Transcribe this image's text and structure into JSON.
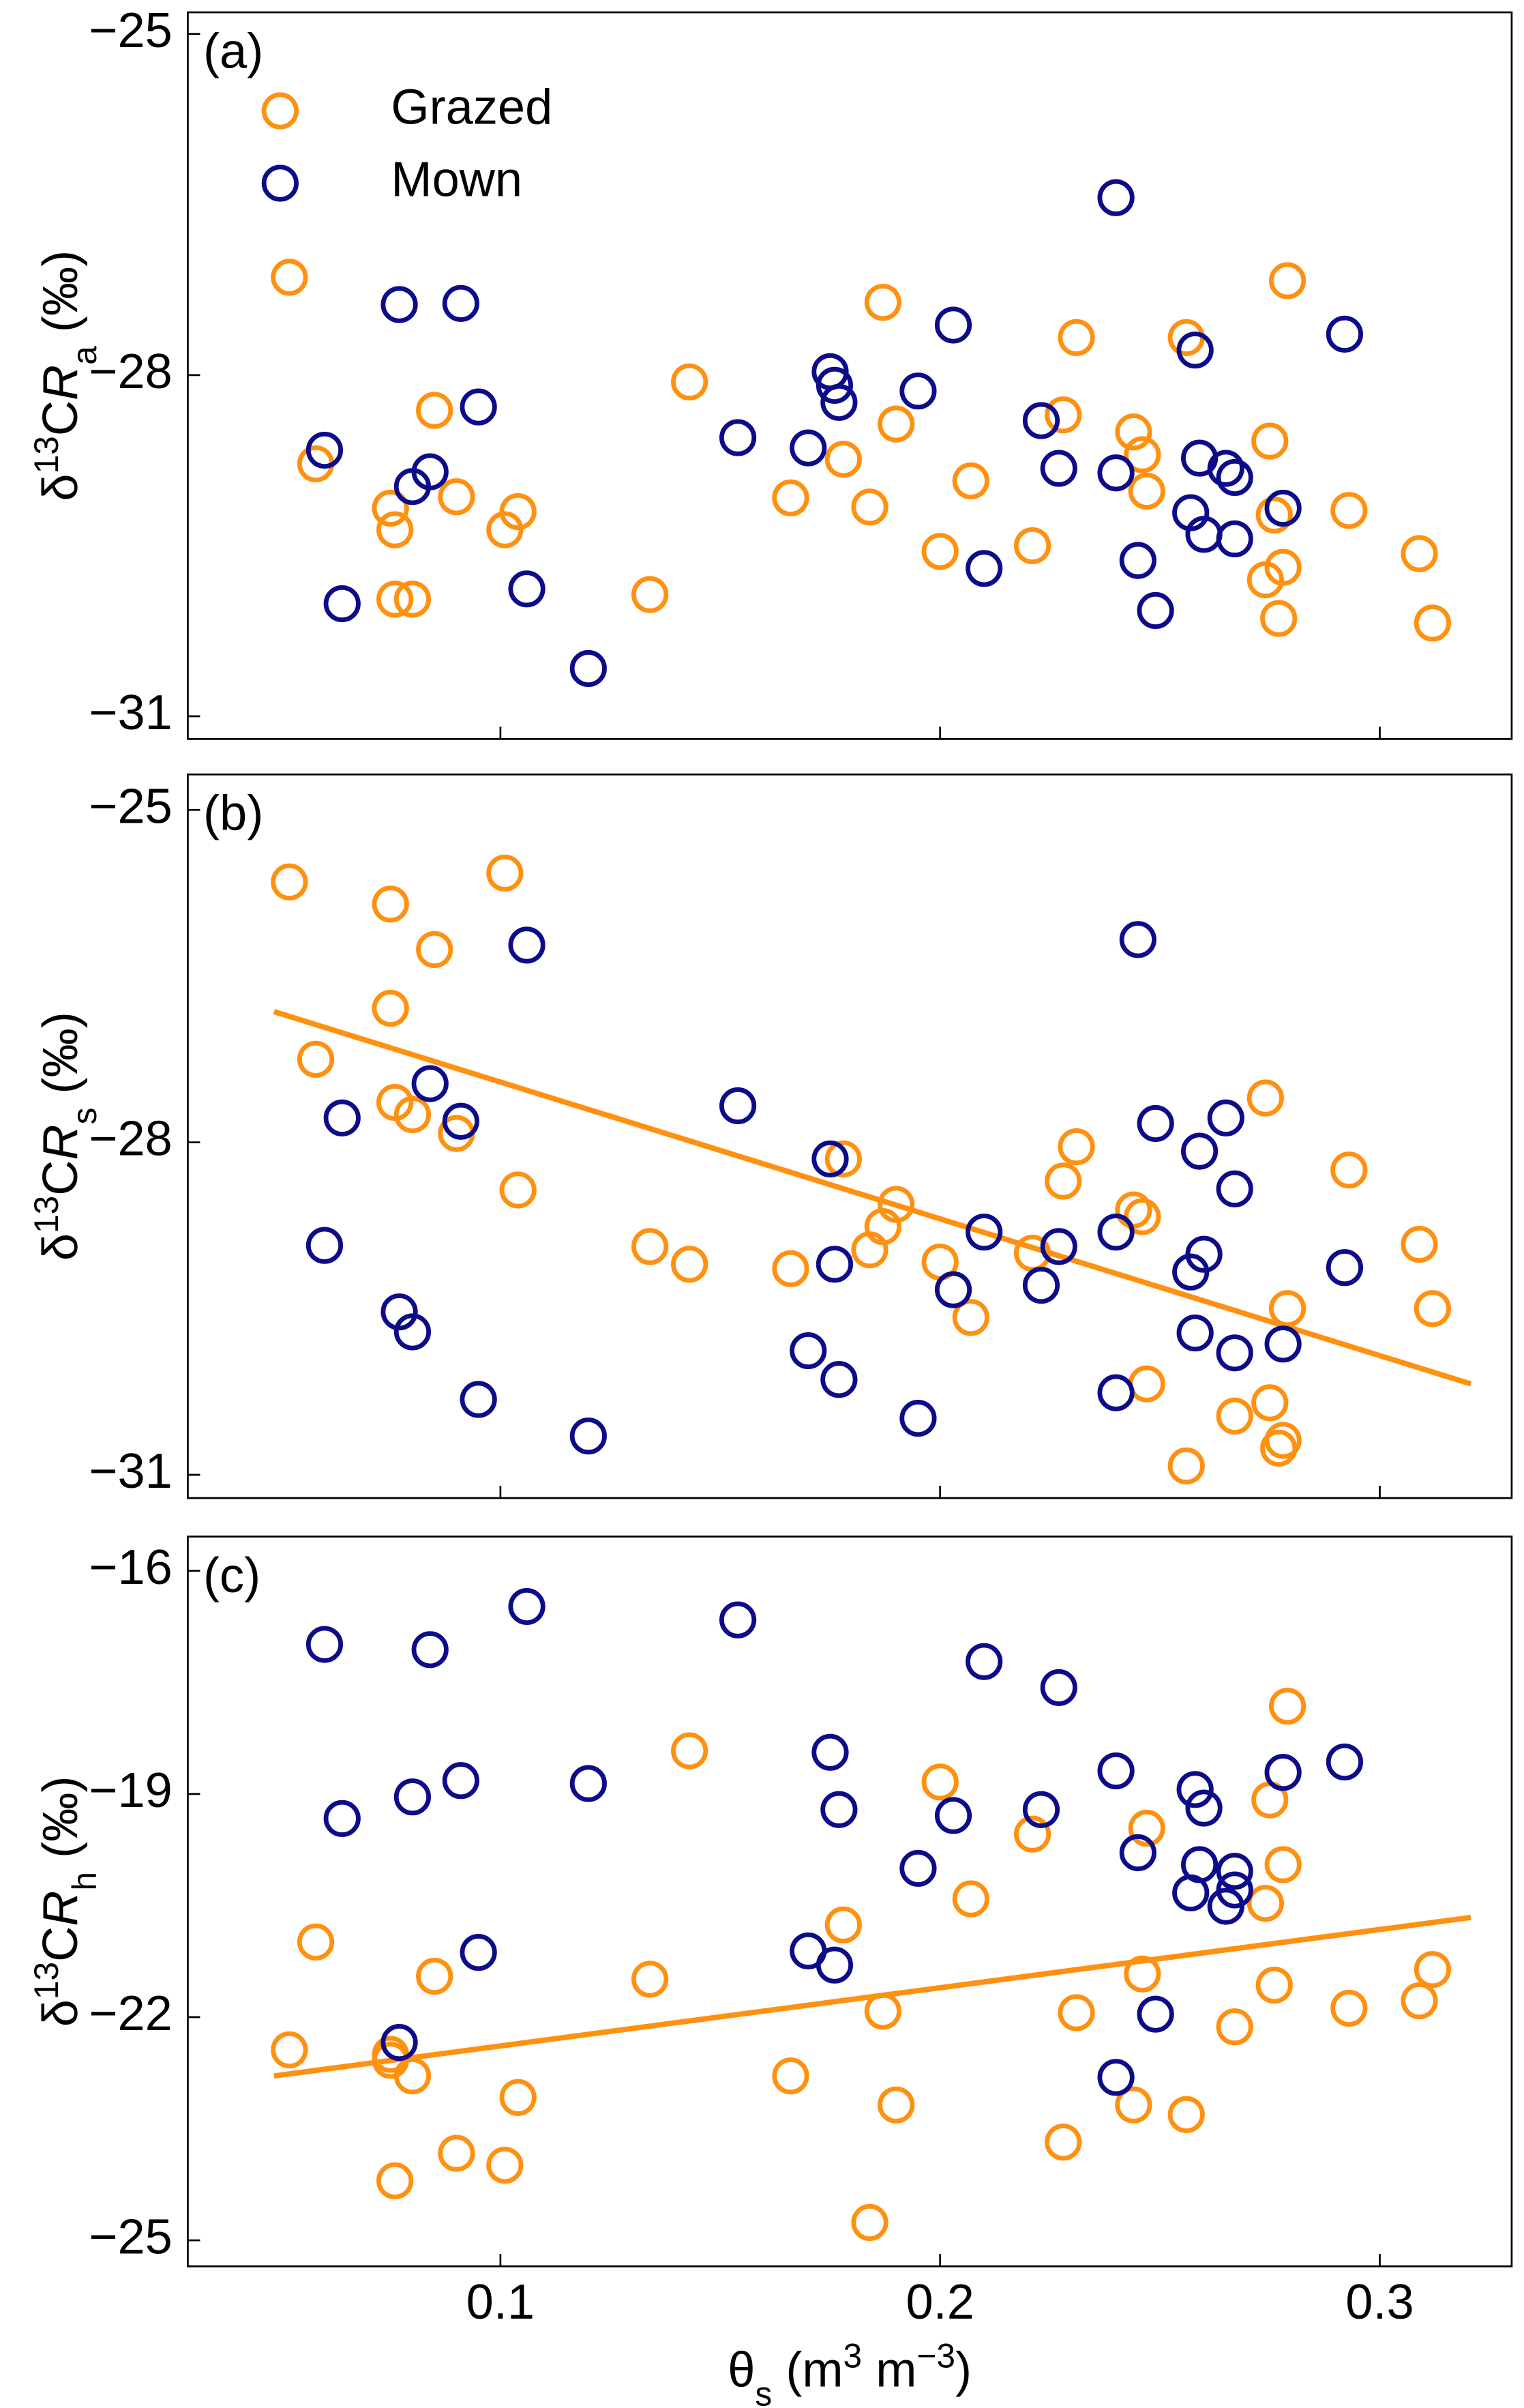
{
  "chart_data": [
    {
      "type": "scatter",
      "panel_label": "(a)",
      "ylabel": [
        "δ",
        "13",
        "C",
        "R",
        "a",
        " (‰)"
      ],
      "xlim": [
        0.0289,
        0.33
      ],
      "ylim": [
        -31.2,
        -24.81
      ],
      "xticks": [
        0.1,
        0.2,
        0.3
      ],
      "show_xtick_labels": false,
      "yticks": [
        {
          "value": -25,
          "label": "−25"
        },
        {
          "value": -28,
          "label": "−28"
        },
        {
          "value": -31,
          "label": "−31"
        }
      ],
      "legend": "upper left",
      "series": [
        {
          "name": "Grazed",
          "color": "#ff9010",
          "x": [
            0.052,
            0.058,
            0.075,
            0.076,
            0.08,
            0.085,
            0.09,
            0.101,
            0.104,
            0.134,
            0.143,
            0.166,
            0.178,
            0.184,
            0.187,
            0.19,
            0.2,
            0.207,
            0.221,
            0.228,
            0.231,
            0.244,
            0.246,
            0.247,
            0.256,
            0.274,
            0.275,
            0.276,
            0.277,
            0.278,
            0.279,
            0.293,
            0.309,
            0.312,
            0.076
          ],
          "values": [
            -27.14,
            -28.78,
            -29.17,
            -29.97,
            -29.97,
            -28.31,
            -29.07,
            -29.36,
            -29.2,
            -29.93,
            -28.06,
            -29.08,
            -28.74,
            -29.16,
            -27.36,
            -28.43,
            -29.55,
            -28.93,
            -29.5,
            -28.35,
            -27.67,
            -28.5,
            -28.7,
            -29.02,
            -27.67,
            -29.8,
            -28.58,
            -29.23,
            -30.14,
            -29.69,
            -27.17,
            -29.19,
            -29.57,
            -30.18,
            -29.36
          ]
        },
        {
          "name": "Mown",
          "color": "#0c0c8a",
          "x": [
            0.06,
            0.064,
            0.077,
            0.08,
            0.084,
            0.091,
            0.095,
            0.106,
            0.12,
            0.154,
            0.17,
            0.175,
            0.176,
            0.177,
            0.195,
            0.203,
            0.21,
            0.223,
            0.227,
            0.24,
            0.24,
            0.245,
            0.249,
            0.258,
            0.259,
            0.257,
            0.26,
            0.265,
            0.267,
            0.267,
            0.278,
            0.292
          ],
          "values": [
            -28.66,
            -30.01,
            -27.38,
            -28.98,
            -28.85,
            -27.37,
            -28.28,
            -29.88,
            -30.58,
            -28.55,
            -28.64,
            -27.97,
            -28.09,
            -28.24,
            -28.14,
            -27.56,
            -29.7,
            -28.4,
            -28.82,
            -26.44,
            -28.86,
            -29.63,
            -30.07,
            -27.78,
            -28.73,
            -29.21,
            -29.4,
            -28.82,
            -28.9,
            -29.44,
            -29.17,
            -27.64
          ]
        }
      ]
    },
    {
      "type": "scatter",
      "panel_label": "(b)",
      "ylabel": [
        "δ",
        "13",
        "C",
        "R",
        "s",
        " (‰)"
      ],
      "xlim": [
        0.0289,
        0.33
      ],
      "ylim": [
        -31.21,
        -24.68
      ],
      "xticks": [
        0.1,
        0.2,
        0.3
      ],
      "show_xtick_labels": false,
      "yticks": [
        {
          "value": -25,
          "label": "−25"
        },
        {
          "value": -28,
          "label": "−28"
        },
        {
          "value": -31,
          "label": "−31"
        }
      ],
      "series": [
        {
          "color": "#ff9010",
          "x": [
            0.052,
            0.058,
            0.075,
            0.075,
            0.076,
            0.08,
            0.085,
            0.09,
            0.101,
            0.104,
            0.134,
            0.143,
            0.166,
            0.178,
            0.184,
            0.187,
            0.19,
            0.2,
            0.207,
            0.221,
            0.228,
            0.231,
            0.244,
            0.246,
            0.247,
            0.256,
            0.267,
            0.274,
            0.275,
            0.277,
            0.278,
            0.279,
            0.293,
            0.309,
            0.312
          ],
          "values": [
            -25.65,
            -27.25,
            -25.85,
            -26.79,
            -27.64,
            -27.75,
            -26.26,
            -27.92,
            -25.57,
            -28.43,
            -28.94,
            -29.1,
            -29.14,
            -28.15,
            -28.97,
            -28.76,
            -28.56,
            -29.08,
            -29.58,
            -29.0,
            -28.35,
            -28.04,
            -28.61,
            -28.67,
            -30.18,
            -30.92,
            -30.47,
            -27.6,
            -30.35,
            -30.76,
            -30.69,
            -29.5,
            -28.25,
            -28.92,
            -29.5
          ]
        },
        {
          "color": "#0c0c8a",
          "x": [
            0.06,
            0.064,
            0.077,
            0.08,
            0.084,
            0.091,
            0.095,
            0.106,
            0.12,
            0.154,
            0.17,
            0.175,
            0.176,
            0.177,
            0.195,
            0.203,
            0.21,
            0.223,
            0.227,
            0.24,
            0.24,
            0.245,
            0.249,
            0.258,
            0.259,
            0.257,
            0.26,
            0.265,
            0.267,
            0.267,
            0.278,
            0.292
          ],
          "values": [
            -28.93,
            -27.78,
            -29.53,
            -29.71,
            -27.47,
            -27.81,
            -30.32,
            -26.22,
            -30.65,
            -27.67,
            -29.88,
            -28.15,
            -29.1,
            -30.14,
            -30.49,
            -29.33,
            -28.81,
            -29.29,
            -28.94,
            -28.81,
            -30.26,
            -26.17,
            -27.83,
            -29.72,
            -28.08,
            -29.17,
            -29.01,
            -27.78,
            -29.9,
            -28.42,
            -29.82,
            -29.13
          ]
        }
      ],
      "trend": {
        "color": "#ff9010",
        "x": [
          0.0485,
          0.3207
        ],
        "values": [
          -26.82,
          -30.18
        ]
      }
    },
    {
      "type": "scatter",
      "panel_label": "(c)",
      "ylabel": [
        "δ",
        "13",
        "C",
        "R",
        "h",
        " (‰)"
      ],
      "xlabel": [
        "θ",
        "s",
        " (m",
        "3",
        " m",
        "−3",
        ")"
      ],
      "xlim": [
        0.0289,
        0.33
      ],
      "ylim": [
        -25.35,
        -15.54
      ],
      "xticks": [
        0.1,
        0.2,
        0.3
      ],
      "show_xtick_labels": true,
      "yticks": [
        {
          "value": -16,
          "label": "−16"
        },
        {
          "value": -19,
          "label": "−19"
        },
        {
          "value": -22,
          "label": "−22"
        },
        {
          "value": -25,
          "label": "−25"
        }
      ],
      "series": [
        {
          "color": "#ff9010",
          "x": [
            0.052,
            0.058,
            0.075,
            0.075,
            0.076,
            0.08,
            0.085,
            0.09,
            0.101,
            0.104,
            0.134,
            0.143,
            0.166,
            0.178,
            0.184,
            0.187,
            0.19,
            0.2,
            0.207,
            0.221,
            0.228,
            0.231,
            0.244,
            0.246,
            0.247,
            0.256,
            0.267,
            0.274,
            0.275,
            0.276,
            0.278,
            0.279,
            0.293,
            0.309,
            0.312
          ],
          "values": [
            -22.44,
            -20.99,
            -22.58,
            -22.5,
            -24.2,
            -22.79,
            -21.45,
            -23.83,
            -23.99,
            -23.08,
            -21.49,
            -18.42,
            -22.79,
            -20.76,
            -24.76,
            -21.92,
            -23.18,
            -18.84,
            -20.41,
            -19.54,
            -23.68,
            -21.94,
            -23.18,
            -21.42,
            -19.46,
            -23.31,
            -22.13,
            -20.47,
            -19.08,
            -21.57,
            -19.95,
            -17.82,
            -21.88,
            -21.78,
            -21.36
          ]
        },
        {
          "color": "#0c0c8a",
          "x": [
            0.06,
            0.064,
            0.077,
            0.08,
            0.084,
            0.091,
            0.095,
            0.106,
            0.12,
            0.154,
            0.17,
            0.175,
            0.176,
            0.177,
            0.195,
            0.203,
            0.21,
            0.223,
            0.227,
            0.24,
            0.24,
            0.245,
            0.249,
            0.258,
            0.259,
            0.257,
            0.26,
            0.265,
            0.267,
            0.267,
            0.278,
            0.292
          ],
          "values": [
            -16.99,
            -19.33,
            -22.34,
            -19.04,
            -17.06,
            -18.82,
            -21.13,
            -16.48,
            -18.86,
            -16.66,
            -21.11,
            -18.44,
            -21.3,
            -19.21,
            -20.0,
            -19.29,
            -17.22,
            -19.21,
            -17.57,
            -18.69,
            -22.81,
            -19.79,
            -21.96,
            -18.94,
            -19.95,
            -20.33,
            -19.19,
            -20.51,
            -20.04,
            -20.29,
            -18.71,
            -18.57
          ]
        }
      ],
      "trend": {
        "color": "#ff9010",
        "x": [
          0.0485,
          0.3207
        ],
        "values": [
          -22.79,
          -20.66
        ]
      }
    }
  ]
}
